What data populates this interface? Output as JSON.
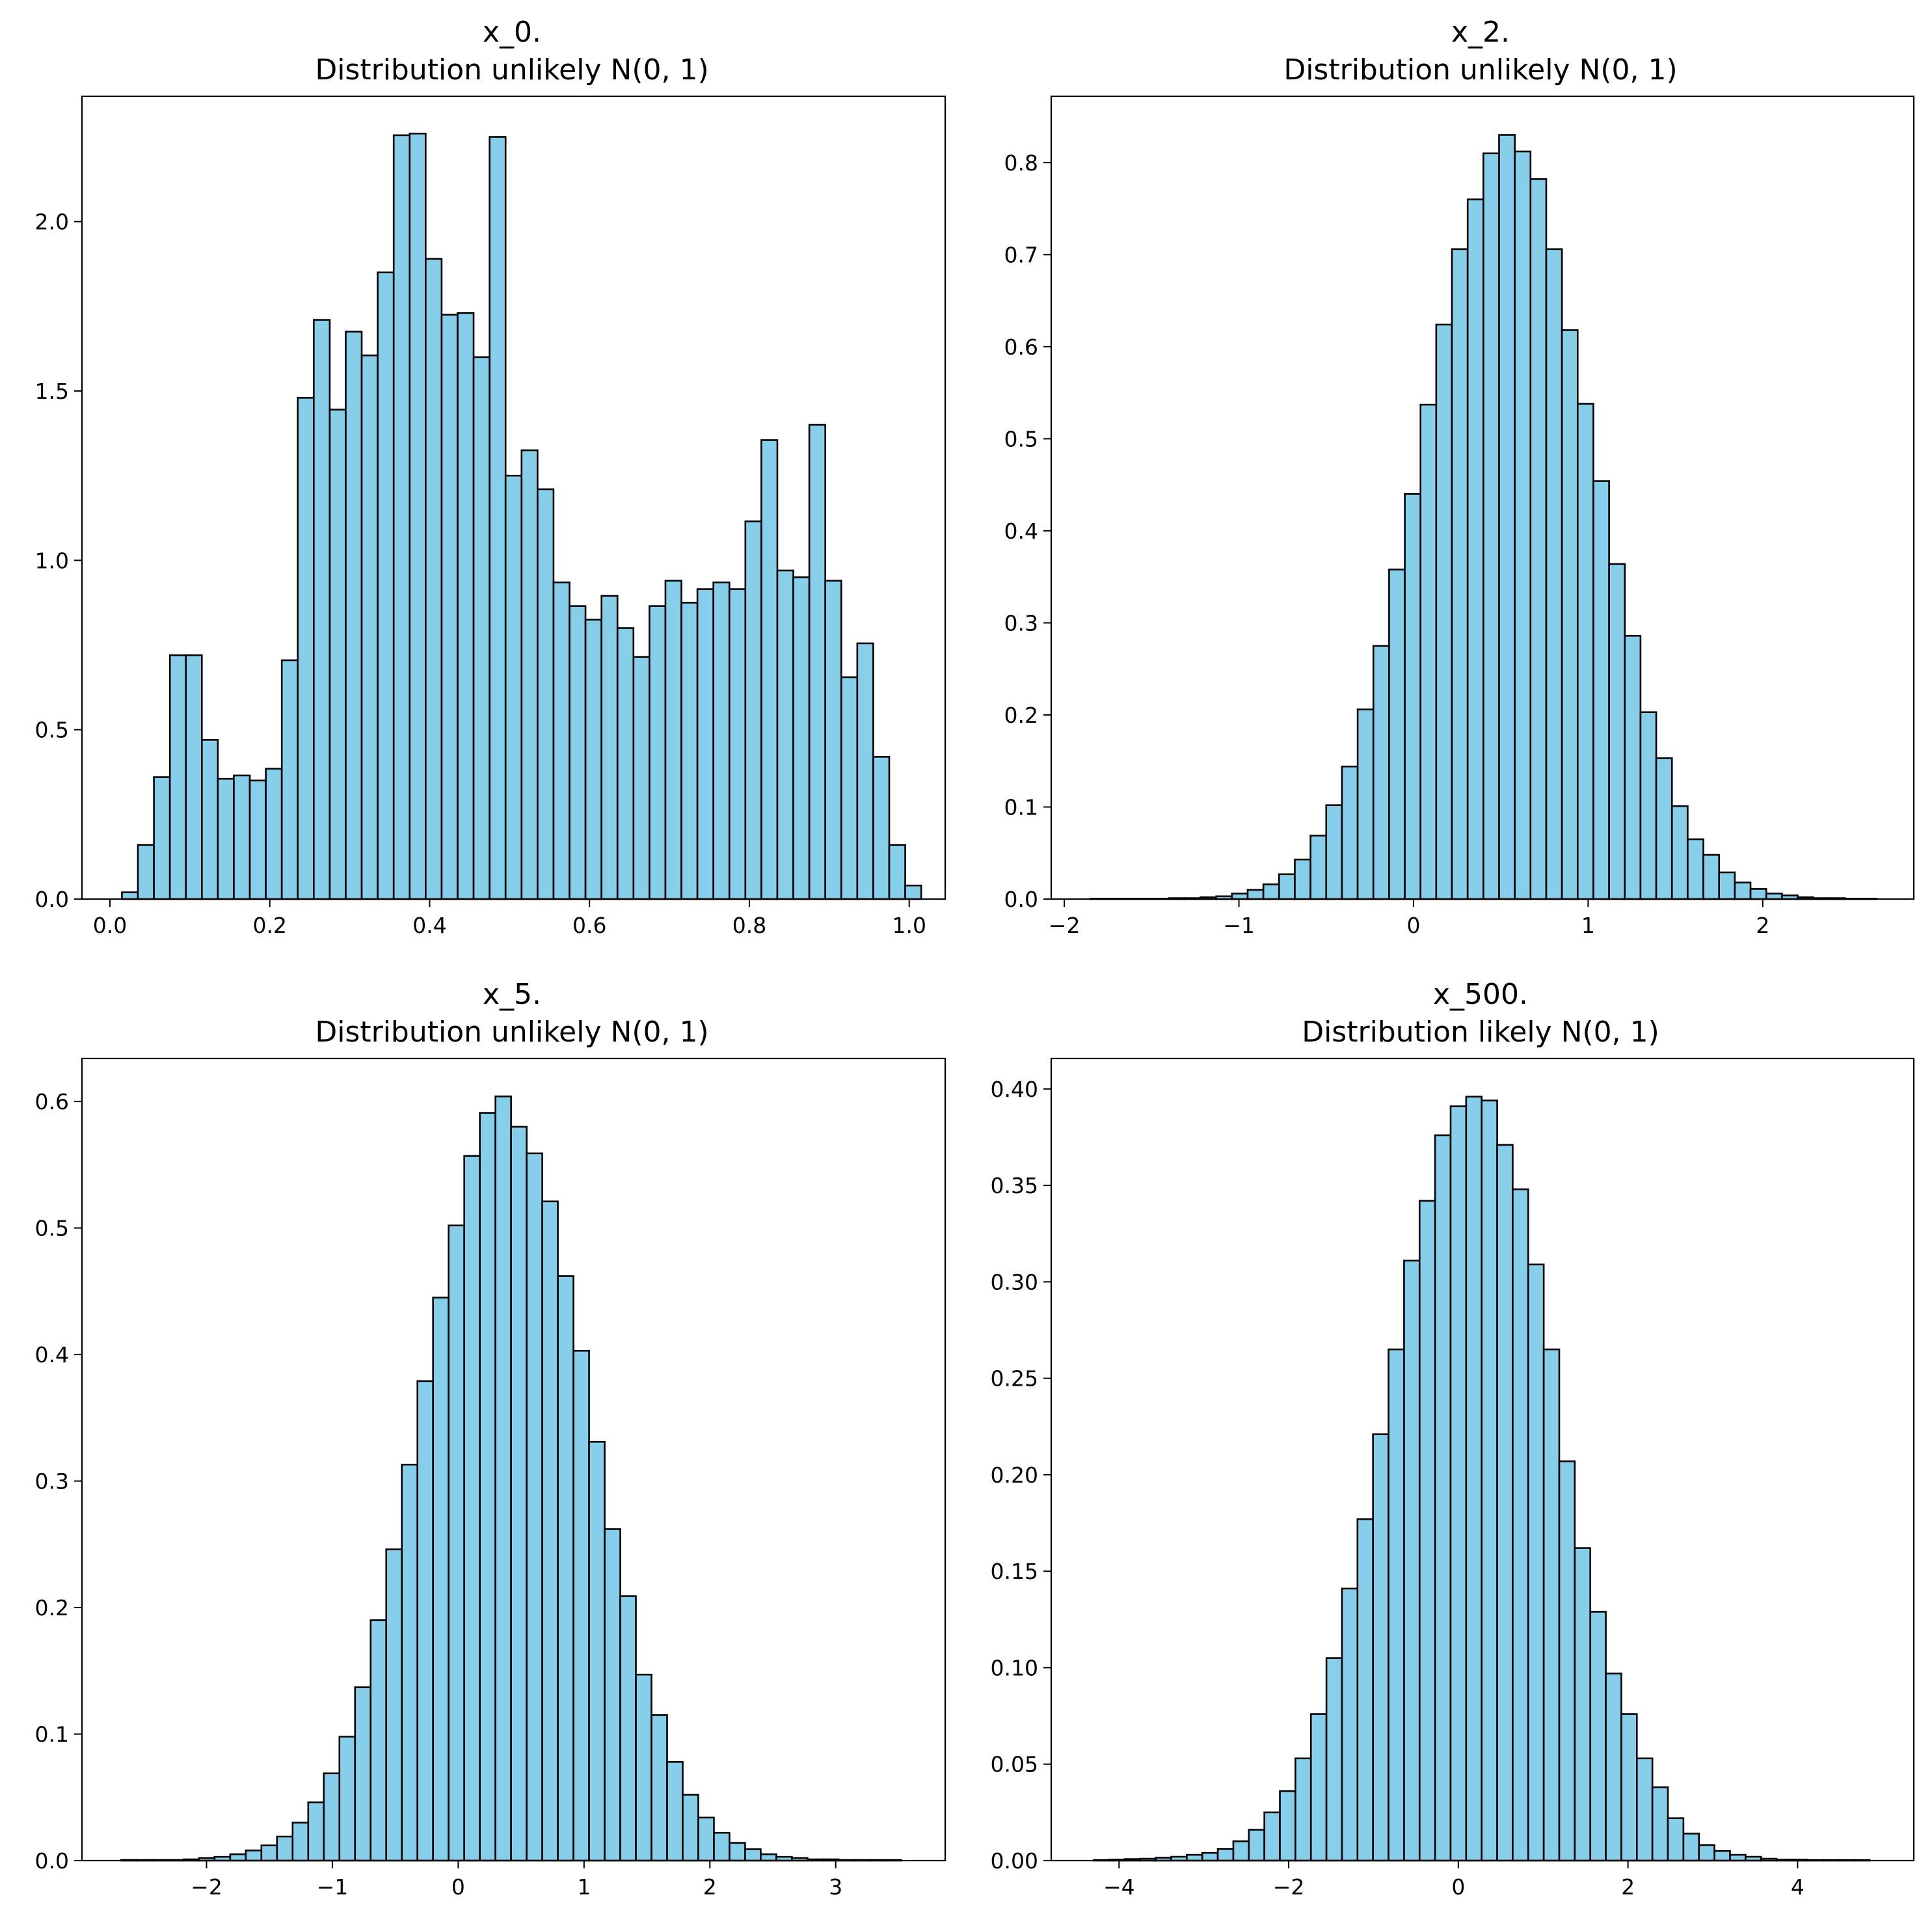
{
  "figure": {
    "background_color": "#ffffff",
    "bar_fill_color": "#87ceeb",
    "bar_edge_color": "#000000"
  },
  "chart_data": [
    {
      "type": "bar",
      "title": "x_0.",
      "subtitle": "Distribution unlikely N(0, 1)",
      "xlabel": "",
      "ylabel": "",
      "grid": false,
      "bin_start": 0.015,
      "bin_width": 0.02,
      "values": [
        0.02,
        0.16,
        0.36,
        0.72,
        0.72,
        0.47,
        0.355,
        0.365,
        0.35,
        0.385,
        0.705,
        1.48,
        1.71,
        1.445,
        1.675,
        1.605,
        1.85,
        2.255,
        2.26,
        1.89,
        1.725,
        1.73,
        1.6,
        2.25,
        1.25,
        1.325,
        1.21,
        0.935,
        0.865,
        0.825,
        0.895,
        0.8,
        0.715,
        0.865,
        0.94,
        0.875,
        0.915,
        0.935,
        0.915,
        1.115,
        1.355,
        0.97,
        0.95,
        1.4,
        0.94,
        0.655,
        0.755,
        0.42,
        0.16,
        0.04
      ],
      "xlim": [
        -0.035,
        1.045
      ],
      "ylim": [
        0,
        2.37
      ],
      "xticks": [
        0.0,
        0.2,
        0.4,
        0.6,
        0.8,
        1.0
      ],
      "xtick_labels": [
        "0.0",
        "0.2",
        "0.4",
        "0.6",
        "0.8",
        "1.0"
      ],
      "yticks": [
        0.0,
        0.5,
        1.0,
        1.5,
        2.0
      ],
      "ytick_labels": [
        "0.0",
        "0.5",
        "1.0",
        "1.5",
        "2.0"
      ]
    },
    {
      "type": "bar",
      "title": "x_2.",
      "subtitle": "Distribution unlikely N(0, 1)",
      "xlabel": "",
      "ylabel": "",
      "grid": false,
      "bin_start": -1.85,
      "bin_width": 0.09,
      "values": [
        0.0005,
        0.0005,
        0.0005,
        0.0005,
        0.0005,
        0.001,
        0.001,
        0.002,
        0.003,
        0.006,
        0.01,
        0.016,
        0.027,
        0.043,
        0.069,
        0.102,
        0.144,
        0.206,
        0.275,
        0.358,
        0.44,
        0.537,
        0.624,
        0.706,
        0.76,
        0.81,
        0.83,
        0.812,
        0.782,
        0.706,
        0.618,
        0.538,
        0.454,
        0.364,
        0.286,
        0.203,
        0.153,
        0.101,
        0.065,
        0.048,
        0.029,
        0.018,
        0.011,
        0.006,
        0.004,
        0.002,
        0.001,
        0.001,
        0.0005,
        0.0005
      ],
      "xlim": [
        -2.075,
        2.865
      ],
      "ylim": [
        0,
        0.872
      ],
      "xticks": [
        -2,
        -1,
        0,
        1,
        2
      ],
      "xtick_labels": [
        "−2",
        "−1",
        "0",
        "1",
        "2"
      ],
      "yticks": [
        0.0,
        0.1,
        0.2,
        0.3,
        0.4,
        0.5,
        0.6,
        0.7,
        0.8
      ],
      "ytick_labels": [
        "0.0",
        "0.1",
        "0.2",
        "0.3",
        "0.4",
        "0.5",
        "0.6",
        "0.7",
        "0.8"
      ]
    },
    {
      "type": "bar",
      "title": "x_5.",
      "subtitle": "Distribution unlikely N(0, 1)",
      "xlabel": "",
      "ylabel": "",
      "grid": false,
      "bin_start": -2.68,
      "bin_width": 0.124,
      "values": [
        0.0005,
        0.0005,
        0.0005,
        0.0005,
        0.001,
        0.002,
        0.003,
        0.005,
        0.008,
        0.012,
        0.019,
        0.03,
        0.046,
        0.069,
        0.098,
        0.137,
        0.19,
        0.246,
        0.313,
        0.379,
        0.445,
        0.502,
        0.557,
        0.591,
        0.604,
        0.58,
        0.559,
        0.521,
        0.462,
        0.403,
        0.331,
        0.262,
        0.209,
        0.147,
        0.115,
        0.078,
        0.052,
        0.034,
        0.022,
        0.014,
        0.009,
        0.005,
        0.003,
        0.002,
        0.001,
        0.001,
        0.0005,
        0.0005,
        0.0005,
        0.0005
      ],
      "xlim": [
        -2.99,
        3.87
      ],
      "ylim": [
        0,
        0.634
      ],
      "xticks": [
        -2,
        -1,
        0,
        1,
        2,
        3
      ],
      "xtick_labels": [
        "−2",
        "−1",
        "0",
        "1",
        "2",
        "3"
      ],
      "yticks": [
        0.0,
        0.1,
        0.2,
        0.3,
        0.4,
        0.5,
        0.6
      ],
      "ytick_labels": [
        "0.0",
        "0.1",
        "0.2",
        "0.3",
        "0.4",
        "0.5",
        "0.6"
      ]
    },
    {
      "type": "bar",
      "title": "x_500.",
      "subtitle": "Distribution likely N(0, 1)",
      "xlabel": "",
      "ylabel": "",
      "grid": false,
      "bin_start": -4.3,
      "bin_width": 0.183,
      "values": [
        0.0003,
        0.0005,
        0.0008,
        0.001,
        0.0015,
        0.002,
        0.003,
        0.004,
        0.006,
        0.01,
        0.016,
        0.025,
        0.036,
        0.053,
        0.076,
        0.105,
        0.141,
        0.177,
        0.221,
        0.265,
        0.311,
        0.342,
        0.376,
        0.391,
        0.396,
        0.394,
        0.371,
        0.348,
        0.309,
        0.265,
        0.207,
        0.162,
        0.129,
        0.097,
        0.076,
        0.053,
        0.038,
        0.022,
        0.014,
        0.008,
        0.005,
        0.003,
        0.002,
        0.001,
        0.0005,
        0.0005,
        0.0003,
        0.0003,
        0.0003,
        0.0003
      ],
      "xlim": [
        -4.8,
        5.37
      ],
      "ylim": [
        0,
        0.4158
      ],
      "xticks": [
        -4,
        -2,
        0,
        2,
        4
      ],
      "xtick_labels": [
        "−4",
        "−2",
        "0",
        "2",
        "4"
      ],
      "yticks": [
        0.0,
        0.05,
        0.1,
        0.15,
        0.2,
        0.25,
        0.3,
        0.35,
        0.4
      ],
      "ytick_labels": [
        "0.00",
        "0.05",
        "0.10",
        "0.15",
        "0.20",
        "0.25",
        "0.30",
        "0.35",
        "0.40"
      ]
    }
  ]
}
